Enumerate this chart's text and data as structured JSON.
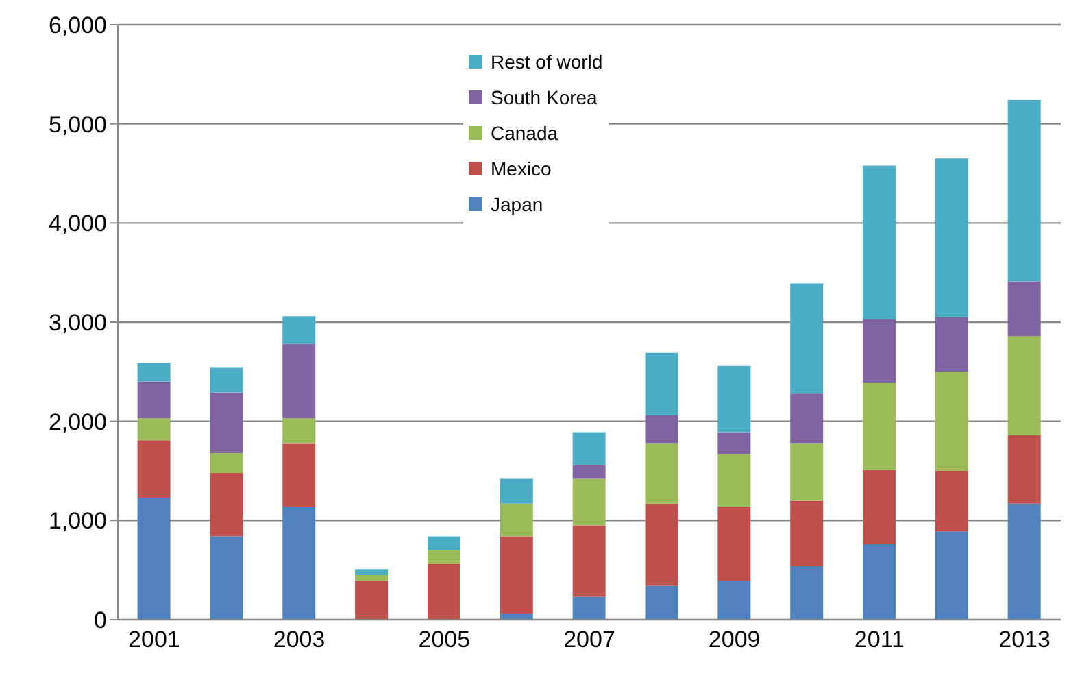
{
  "chart_data": {
    "type": "bar",
    "stacked": true,
    "categories": [
      "2001",
      null,
      "2003",
      null,
      "2005",
      null,
      "2007",
      null,
      "2009",
      null,
      "2011",
      null,
      "2013"
    ],
    "series": [
      {
        "name": "Japan",
        "color": "#4f81bd",
        "values": [
          1230,
          840,
          1140,
          0,
          0,
          60,
          230,
          340,
          390,
          540,
          760,
          890,
          1170
        ]
      },
      {
        "name": "Mexico",
        "color": "#c0504d",
        "values": [
          580,
          640,
          640,
          390,
          560,
          780,
          720,
          830,
          750,
          660,
          750,
          610,
          690
        ]
      },
      {
        "name": "Canada",
        "color": "#9bbb59",
        "values": [
          220,
          200,
          250,
          60,
          140,
          330,
          470,
          610,
          530,
          580,
          880,
          1000,
          1000
        ]
      },
      {
        "name": "South Korea",
        "color": "#8064a2",
        "values": [
          370,
          610,
          750,
          0,
          0,
          0,
          140,
          280,
          220,
          500,
          640,
          550,
          550
        ]
      },
      {
        "name": "Rest of world",
        "color": "#4bacc6",
        "values": [
          190,
          250,
          280,
          60,
          140,
          250,
          330,
          630,
          670,
          1110,
          1550,
          1600,
          1830
        ]
      }
    ],
    "ylim": [
      0,
      6000
    ],
    "yticks": [
      {
        "value": 0,
        "label": "0"
      },
      {
        "value": 1000,
        "label": "1,000"
      },
      {
        "value": 2000,
        "label": "2,000"
      },
      {
        "value": 3000,
        "label": "3,000"
      },
      {
        "value": 4000,
        "label": "4,000"
      },
      {
        "value": 5000,
        "label": "5,000"
      },
      {
        "value": 6000,
        "label": "6,000"
      }
    ],
    "grid": "y",
    "legend": "top"
  }
}
